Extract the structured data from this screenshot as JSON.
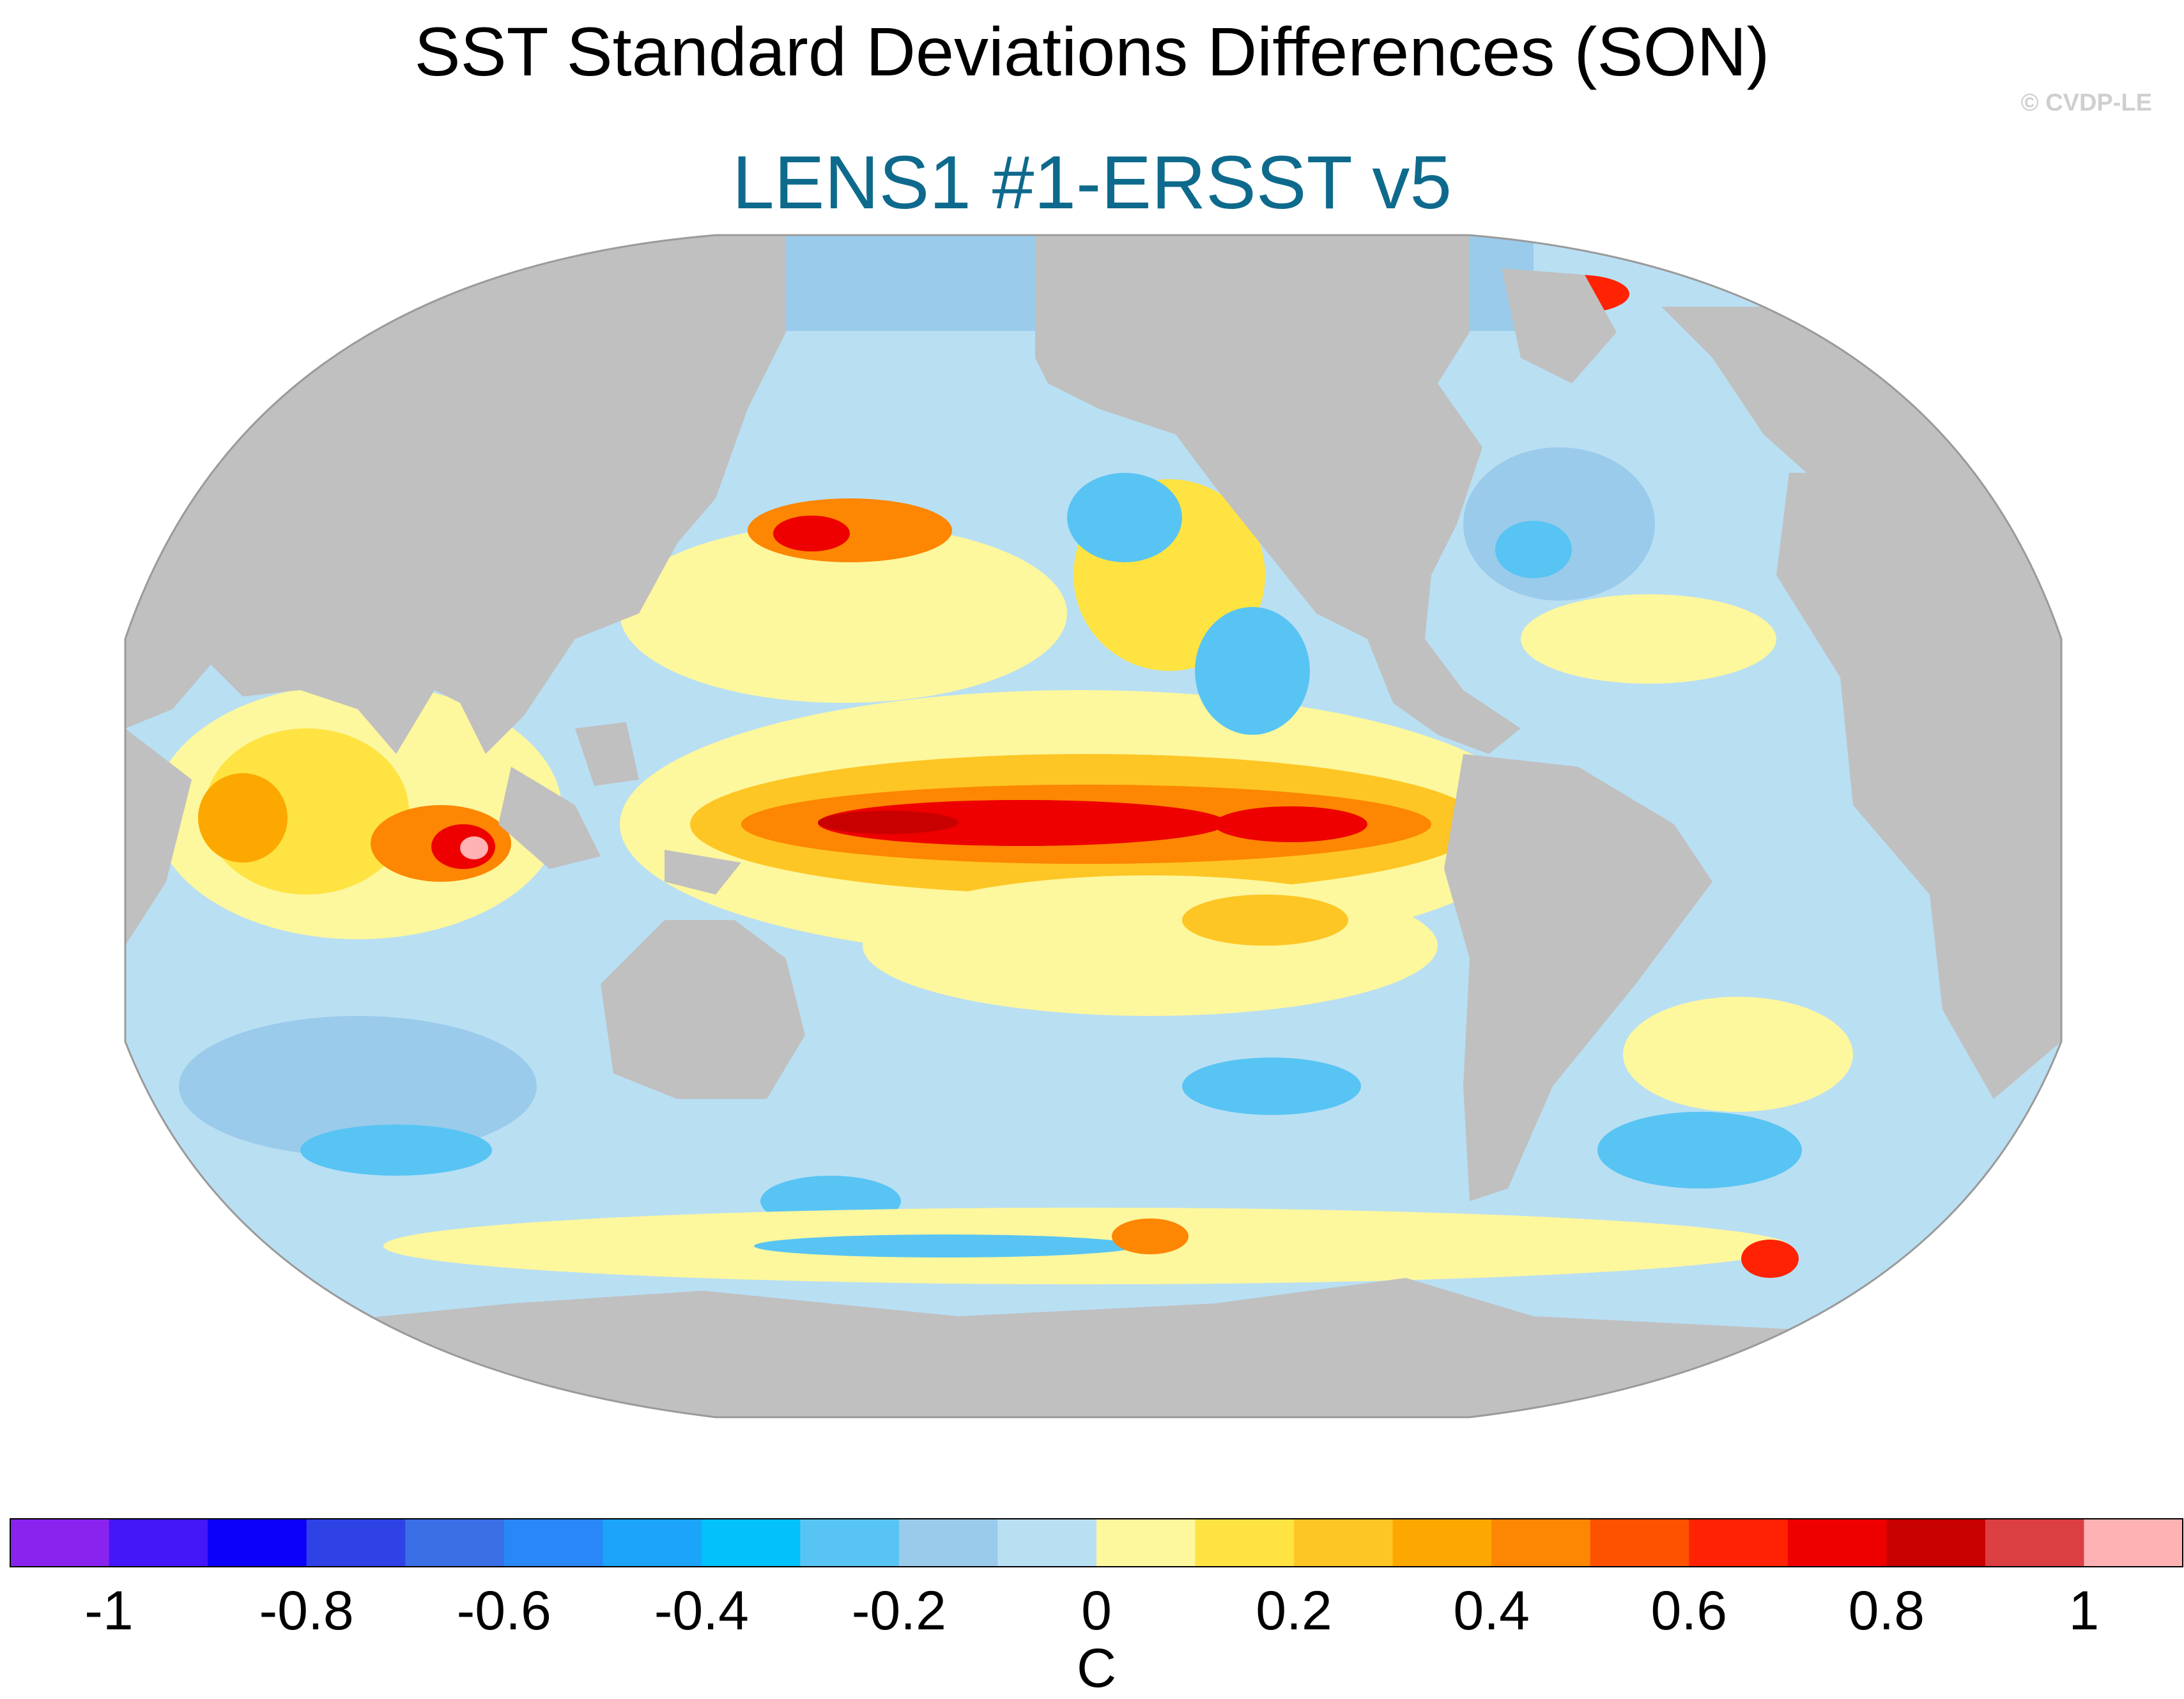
{
  "title": "SST Standard Deviations Differences (SON)",
  "subtitle": "LENS1 #1-ERSST v5",
  "credit": "© CVDP-LE",
  "colors": {
    "land": "#c0c0c0",
    "ocean_background": "#b9dff3",
    "missing": "#ffffff",
    "subtitle": "#0e6a8c"
  },
  "colorbar": {
    "unit": "C",
    "bins": [
      "#8b23ef",
      "#4317f7",
      "#0d00f8",
      "#2f42e6",
      "#3a6fe6",
      "#2987f8",
      "#1ba4f9",
      "#02c1fb",
      "#58c4f3",
      "#9acbeb",
      "#b9dff3",
      "#fdf79e",
      "#fee342",
      "#fdc624",
      "#fca800",
      "#fd8602",
      "#fd5301",
      "#ff2304",
      "#ee0000",
      "#c80000",
      "#dc3f42",
      "#feb2b3"
    ],
    "tick_labels": [
      "-1",
      "-0.8",
      "-0.6",
      "-0.4",
      "-0.2",
      "0",
      "0.2",
      "0.4",
      "0.6",
      "0.8",
      "1"
    ]
  }
}
